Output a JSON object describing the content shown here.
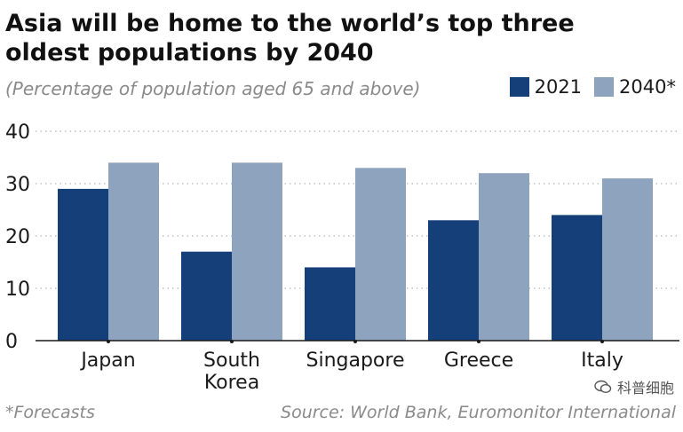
{
  "colors": {
    "series_2021": "#143f78",
    "series_2040": "#8ea3bd",
    "grid": "#b5b5b5",
    "axis": "#1a1a1a"
  },
  "watermark": {
    "text": "科普细胞",
    "icon": "wechat-icon"
  },
  "footnote": "*Forecasts",
  "source": "Source: World Bank, Euromonitor International",
  "chart_data": {
    "type": "bar",
    "title": "Asia will be home to the world’s top three oldest populations by 2040",
    "subtitle": "(Percentage of population aged 65 and above)",
    "xlabel": "",
    "ylabel": "",
    "ylim": [
      0,
      40
    ],
    "yticks": [
      0,
      10,
      20,
      30,
      40
    ],
    "grid": true,
    "legend": "top-right",
    "categories": [
      "Japan",
      "South Korea",
      "Singapore",
      "Greece",
      "Italy"
    ],
    "category_lines": [
      [
        "Japan"
      ],
      [
        "South",
        "Korea"
      ],
      [
        "Singapore"
      ],
      [
        "Greece"
      ],
      [
        "Italy"
      ]
    ],
    "series": [
      {
        "name": "2021",
        "values": [
          29,
          17,
          14,
          23,
          24
        ]
      },
      {
        "name": "2040*",
        "values": [
          34,
          34,
          33,
          32,
          31
        ]
      }
    ]
  }
}
